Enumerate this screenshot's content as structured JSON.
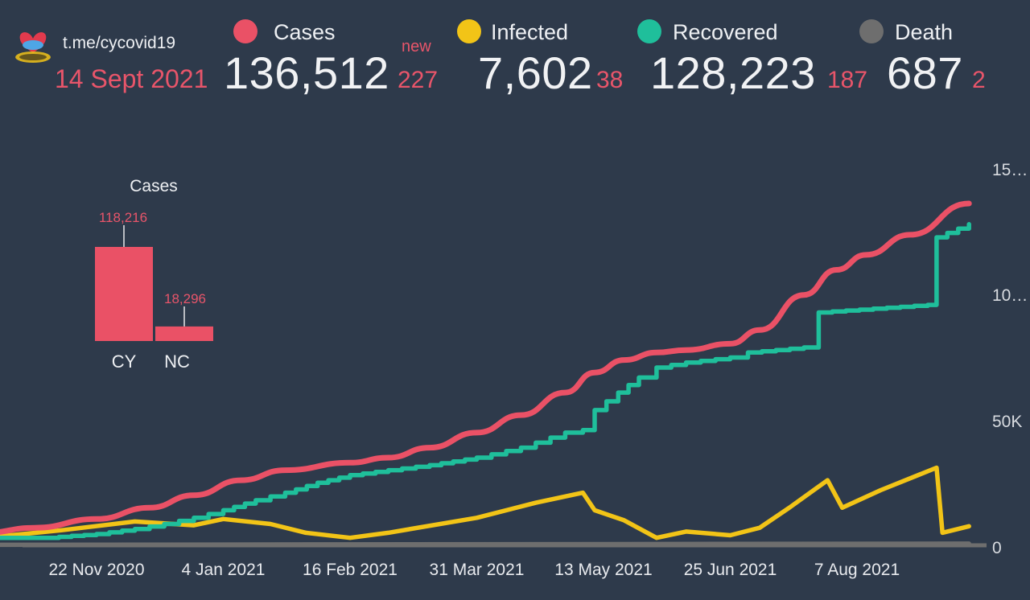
{
  "header": {
    "source": "t.me/cycovid19",
    "date": "14 Sept 2021",
    "new_label": "new",
    "stats": [
      {
        "label": "Cases",
        "value": "136,512",
        "delta": "227",
        "color": "#ea5166"
      },
      {
        "label": "Infected",
        "value": "7,602",
        "delta": "38",
        "color": "#f2c417"
      },
      {
        "label": "Recovered",
        "value": "128,223",
        "delta": "187",
        "color": "#1fbf9b"
      },
      {
        "label": "Death",
        "value": "687",
        "delta": "2",
        "color": "#6e6e6e"
      }
    ]
  },
  "chart_data": [
    {
      "type": "line",
      "x_type": "date",
      "x_ticks": [
        "22 Nov 2020",
        "4 Jan 2021",
        "16 Feb 2021",
        "31 Mar 2021",
        "13 May 2021",
        "25 Jun 2021",
        "7 Aug 2021"
      ],
      "y_ticks": [
        "0",
        "50K",
        "10…",
        "15…"
      ],
      "ylim": [
        0,
        150000
      ],
      "grid": false,
      "legend": "top",
      "series": [
        {
          "name": "Cases",
          "color": "#ea5166",
          "style": "smooth",
          "points": [
            [
              "2020-10-15",
              5000
            ],
            [
              "2020-11-01",
              7000
            ],
            [
              "2020-11-22",
              10500
            ],
            [
              "2020-12-10",
              15000
            ],
            [
              "2020-12-25",
              20000
            ],
            [
              "2021-01-10",
              26000
            ],
            [
              "2021-01-25",
              30000
            ],
            [
              "2021-02-16",
              33000
            ],
            [
              "2021-03-01",
              35000
            ],
            [
              "2021-03-15",
              39000
            ],
            [
              "2021-03-31",
              45000
            ],
            [
              "2021-04-15",
              52000
            ],
            [
              "2021-04-30",
              61000
            ],
            [
              "2021-05-10",
              69000
            ],
            [
              "2021-05-20",
              74000
            ],
            [
              "2021-05-31",
              77000
            ],
            [
              "2021-06-10",
              78000
            ],
            [
              "2021-06-25",
              80500
            ],
            [
              "2021-07-05",
              86000
            ],
            [
              "2021-07-20",
              100000
            ],
            [
              "2021-07-31",
              110000
            ],
            [
              "2021-08-10",
              116000
            ],
            [
              "2021-08-25",
              124000
            ],
            [
              "2021-09-14",
              136512
            ]
          ]
        },
        {
          "name": "Recovered",
          "color": "#1fbf9b",
          "style": "step",
          "points": [
            [
              "2020-10-15",
              3000
            ],
            [
              "2020-11-05",
              3000
            ],
            [
              "2020-11-22",
              4500
            ],
            [
              "2020-12-05",
              6500
            ],
            [
              "2020-12-15",
              8500
            ],
            [
              "2020-12-25",
              11000
            ],
            [
              "2021-01-04",
              14000
            ],
            [
              "2021-01-15",
              18000
            ],
            [
              "2021-01-25",
              21000
            ],
            [
              "2021-02-05",
              25000
            ],
            [
              "2021-02-16",
              28000
            ],
            [
              "2021-03-01",
              30000
            ],
            [
              "2021-03-15",
              32000
            ],
            [
              "2021-03-31",
              35000
            ],
            [
              "2021-04-15",
              39000
            ],
            [
              "2021-04-30",
              45000
            ],
            [
              "2021-05-06",
              46000
            ],
            [
              "2021-05-10",
              54000
            ],
            [
              "2021-05-18",
              61000
            ],
            [
              "2021-05-25",
              67000
            ],
            [
              "2021-05-31",
              71000
            ],
            [
              "2021-06-10",
              73000
            ],
            [
              "2021-06-25",
              75000
            ],
            [
              "2021-07-01",
              77000
            ],
            [
              "2021-07-20",
              79000
            ],
            [
              "2021-07-25",
              93000
            ],
            [
              "2021-08-31",
              96000
            ],
            [
              "2021-09-03",
              123000
            ],
            [
              "2021-09-14",
              128223
            ]
          ]
        },
        {
          "name": "Infected",
          "color": "#f2c417",
          "style": "linear",
          "points": [
            [
              "2020-10-15",
              3000
            ],
            [
              "2020-11-10",
              6000
            ],
            [
              "2020-12-05",
              9500
            ],
            [
              "2020-12-25",
              8000
            ],
            [
              "2021-01-04",
              10500
            ],
            [
              "2021-01-20",
              8500
            ],
            [
              "2021-02-01",
              5000
            ],
            [
              "2021-02-16",
              3000
            ],
            [
              "2021-03-01",
              5000
            ],
            [
              "2021-03-31",
              11000
            ],
            [
              "2021-04-20",
              17000
            ],
            [
              "2021-05-06",
              21000
            ],
            [
              "2021-05-10",
              14000
            ],
            [
              "2021-05-20",
              10000
            ],
            [
              "2021-05-31",
              3000
            ],
            [
              "2021-06-10",
              5500
            ],
            [
              "2021-06-25",
              4000
            ],
            [
              "2021-07-05",
              7000
            ],
            [
              "2021-07-15",
              15000
            ],
            [
              "2021-07-28",
              26000
            ],
            [
              "2021-08-02",
              15000
            ],
            [
              "2021-08-15",
              22000
            ],
            [
              "2021-09-03",
              31000
            ],
            [
              "2021-09-05",
              5000
            ],
            [
              "2021-09-14",
              7602
            ]
          ]
        },
        {
          "name": "Death",
          "color": "#6e6e6e",
          "style": "linear",
          "points": [
            [
              "2020-10-15",
              200
            ],
            [
              "2021-09-14",
              687
            ]
          ]
        }
      ]
    },
    {
      "type": "bar",
      "title": "Cases",
      "categories": [
        "CY",
        "NC"
      ],
      "values": [
        118216,
        18296
      ],
      "value_labels": [
        "118,216",
        "18,296"
      ],
      "color": "#ea5166"
    }
  ]
}
